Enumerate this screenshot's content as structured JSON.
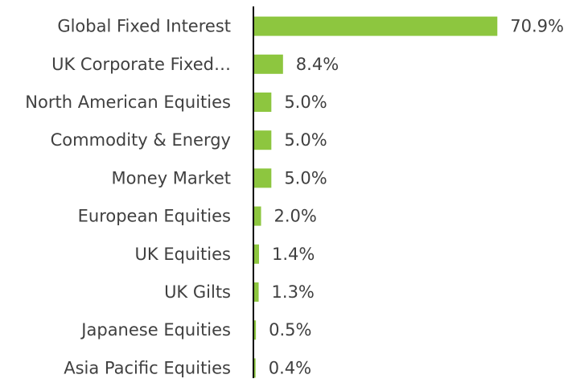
{
  "chart_data": {
    "type": "barh",
    "categories": [
      "Global Fixed Interest",
      "UK Corporate Fixed…",
      "North American Equities",
      "Commodity & Energy",
      "Money Market",
      "European Equities",
      "UK Equities",
      "UK Gilts",
      "Japanese Equities",
      "Asia Pacific Equities"
    ],
    "values": [
      70.9,
      8.4,
      5.0,
      5.0,
      5.0,
      2.0,
      1.4,
      1.3,
      0.5,
      0.4
    ],
    "value_labels": [
      "70.9%",
      "8.4%",
      "5.0%",
      "5.0%",
      "5.0%",
      "2.0%",
      "1.4%",
      "1.3%",
      "0.5%",
      "0.4%"
    ],
    "color": "#8dc63f",
    "xlim": [
      0,
      95
    ]
  }
}
